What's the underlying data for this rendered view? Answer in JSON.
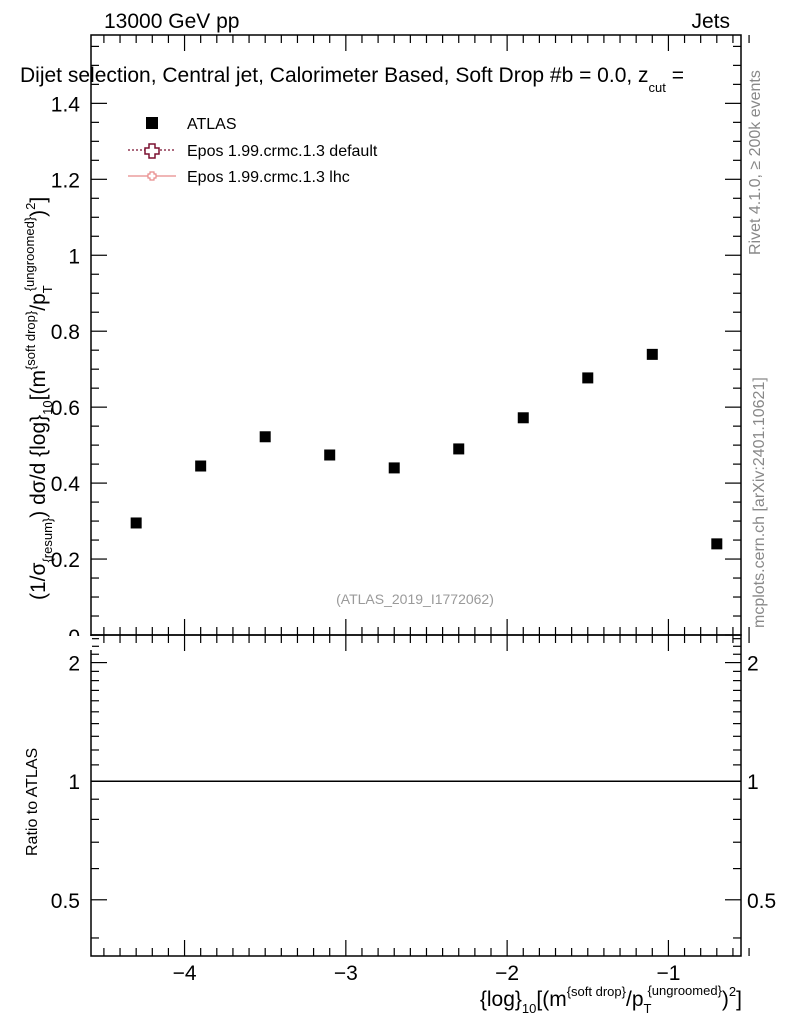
{
  "header": {
    "energy": "13000 GeV pp",
    "process": "Jets",
    "title": "Dijet selection, Central jet, Calorimeter Based, Soft Drop #b = 0.0, z",
    "title_sub": "cut",
    "title_tail": " ="
  },
  "side_labels": {
    "rivet": "Rivet 4.1.0, ≥ 200k events",
    "mcplots": "mcplots.cern.ch [arXiv:2401.10621]"
  },
  "reference": "(ATLAS_2019_I1772062)",
  "legend": {
    "items": [
      {
        "label": "ATLAS",
        "color": "#000000"
      },
      {
        "label": "Epos 1.99.crmc.1.3 default",
        "color": "#7b1030"
      },
      {
        "label": "Epos 1.99.crmc.1.3 lhc",
        "color": "#e88a8a"
      }
    ]
  },
  "y_label": {
    "pre": "(1/σ",
    "sub1": "{resum}",
    "mid1": ") dσ/d {log}",
    "sub2": "10",
    "mid2": "[(m",
    "sup1": "{soft drop}",
    "mid3": "/p",
    "sub3": "T",
    "sup2": "{ungroomed}",
    "post": ")",
    "sup3": "2",
    "end": "]"
  },
  "x_label": {
    "pre": "{log}",
    "sub1": "10",
    "mid1": "[(m",
    "sup1": "{soft drop}",
    "mid2": "/p",
    "sub2": "T",
    "sup2": "{ungroomed}",
    "mid3": ")",
    "sup3": "2",
    "end": "]"
  },
  "ratio_label": "Ratio to ATLAS",
  "chart_data": {
    "type": "scatter",
    "title": "Dijet selection, Central jet, Calorimeter Based, Soft Drop #b = 0.0, z_cut =",
    "xlim": [
      -4.58,
      -0.55
    ],
    "ylim": [
      0,
      1.58
    ],
    "x_ticks": [
      -4,
      -3,
      -2,
      -1
    ],
    "x_tick_labels": [
      "−4",
      "−3",
      "−2",
      "−1"
    ],
    "y_ticks": [
      0.2,
      0.4,
      0.6,
      0.8,
      1,
      1.2,
      1.4
    ],
    "y_tick_labels": [
      "0.2",
      "0.4",
      "0.6",
      "0.8",
      "1",
      "1.2",
      "1.4"
    ],
    "y_edge_label": "0",
    "series": [
      {
        "name": "ATLAS",
        "x": [
          -4.3,
          -3.9,
          -3.5,
          -3.1,
          -2.7,
          -2.3,
          -1.9,
          -1.5,
          -1.1,
          -0.7
        ],
        "y": [
          0.295,
          0.445,
          0.522,
          0.474,
          0.44,
          0.49,
          0.572,
          0.677,
          0.739,
          0.24
        ]
      }
    ],
    "ratio": {
      "ylabel": "Ratio to ATLAS",
      "ylim_log": [
        0.36,
        2.35
      ],
      "ticks": [
        0.5,
        1,
        2
      ],
      "tick_labels": [
        "0.5",
        "1",
        "2"
      ],
      "reference_line": 1
    }
  }
}
